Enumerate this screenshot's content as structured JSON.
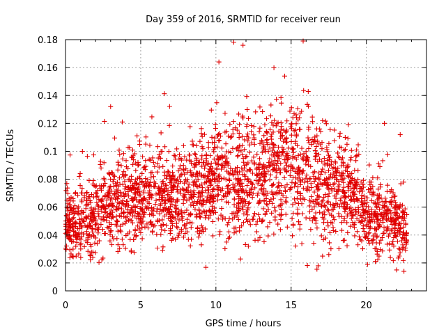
{
  "chart_data": {
    "type": "scatter",
    "title": "Day 359 of 2016, SRMTID for receiver reun",
    "xlabel": "GPS time / hours",
    "ylabel": "SRMTID / TECUs",
    "xlim": [
      0,
      24
    ],
    "ylim": [
      0,
      0.18
    ],
    "xticks": [
      0,
      5,
      10,
      15,
      20
    ],
    "xtick_labels": [
      "0",
      "5",
      "10",
      "15",
      "20"
    ],
    "yticks": [
      0,
      0.02,
      0.04,
      0.06,
      0.08,
      0.1,
      0.12,
      0.14,
      0.16,
      0.18
    ],
    "ytick_labels": [
      "0",
      "0.02",
      "0.04",
      "0.06",
      "0.08",
      "0.1",
      "0.12",
      "0.14",
      "0.16",
      "0.18"
    ],
    "grid": true,
    "marker": "+",
    "color": "#e00000",
    "x_data_range": [
      0,
      22.7
    ],
    "trend": [
      {
        "hour": 0,
        "value": 0.05
      },
      {
        "hour": 2,
        "value": 0.052
      },
      {
        "hour": 3,
        "value": 0.062
      },
      {
        "hour": 5,
        "value": 0.066
      },
      {
        "hour": 8,
        "value": 0.067
      },
      {
        "hour": 10,
        "value": 0.08
      },
      {
        "hour": 13,
        "value": 0.082
      },
      {
        "hour": 15,
        "value": 0.092
      },
      {
        "hour": 16,
        "value": 0.085
      },
      {
        "hour": 17,
        "value": 0.072
      },
      {
        "hour": 19,
        "value": 0.07
      },
      {
        "hour": 20,
        "value": 0.055
      },
      {
        "hour": 22,
        "value": 0.05
      },
      {
        "hour": 22.7,
        "value": 0.045
      }
    ],
    "notable_points": [
      {
        "x": 3.0,
        "y": 0.132
      },
      {
        "x": 10.2,
        "y": 0.164
      },
      {
        "x": 11.8,
        "y": 0.176
      },
      {
        "x": 15.8,
        "y": 0.179
      },
      {
        "x": 21.2,
        "y": 0.12
      },
      {
        "x": 16.8,
        "y": 0.018
      },
      {
        "x": 22.5,
        "y": 0.014
      }
    ],
    "point_count": 2600
  }
}
